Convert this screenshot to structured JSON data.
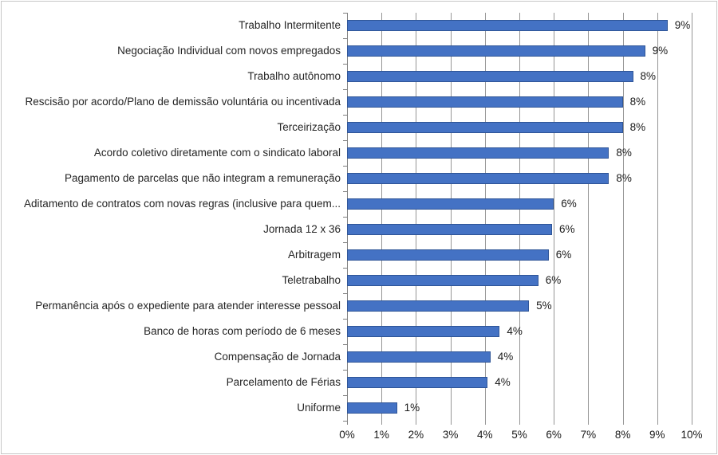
{
  "chart_data": {
    "type": "bar",
    "orientation": "horizontal",
    "title": "",
    "xlabel": "",
    "ylabel": "",
    "categories": [
      "Trabalho Intermitente",
      "Negociação Individual com novos empregados",
      "Trabalho autônomo",
      "Rescisão por acordo/Plano de demissão voluntária ou incentivada",
      "Terceirização",
      "Acordo coletivo diretamente com o sindicato laboral",
      "Pagamento de parcelas que não integram a remuneração",
      "Aditamento de contratos com novas regras (inclusive para quem...",
      "Jornada 12 x 36",
      "Arbitragem",
      "Teletrabalho",
      "Permanência após o expediente para atender interesse pessoal",
      "Banco de horas com período de 6 meses",
      "Compensação de Jornada",
      "Parcelamento de Férias",
      "Uniforme"
    ],
    "values": [
      9.3,
      8.65,
      8.3,
      8.0,
      8.0,
      7.6,
      7.6,
      6.0,
      5.95,
      5.85,
      5.55,
      5.28,
      4.43,
      4.16,
      4.08,
      1.45
    ],
    "value_labels": [
      "9%",
      "9%",
      "8%",
      "8%",
      "8%",
      "8%",
      "8%",
      "6%",
      "6%",
      "6%",
      "6%",
      "5%",
      "4%",
      "4%",
      "4%",
      "1%"
    ],
    "x_ticks": [
      "0%",
      "1%",
      "2%",
      "3%",
      "4%",
      "5%",
      "6%",
      "7%",
      "8%",
      "9%",
      "10%"
    ],
    "xlim": [
      0,
      10
    ],
    "grid": "vertical-only",
    "legend": "none",
    "colors": {
      "bar_fill": "#4472C4",
      "bar_border": "#2F5597",
      "gridline": "#969696",
      "axis": "#7F7F7F",
      "text": "#1A1A1A",
      "frame_border": "#C6C6C6",
      "background": "#FFFFFF"
    }
  }
}
